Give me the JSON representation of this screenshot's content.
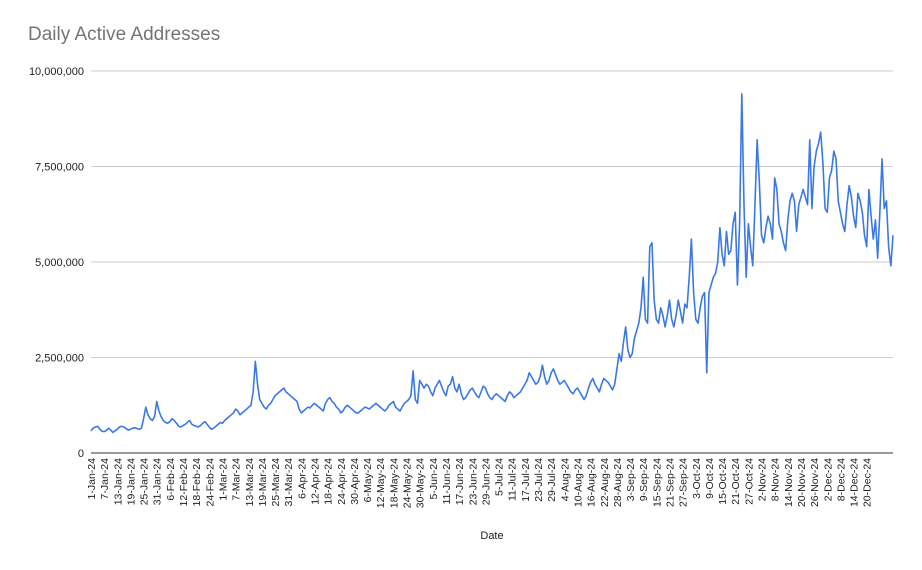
{
  "chart_data": {
    "type": "line",
    "title": "Daily Active Addresses",
    "xlabel": "Date",
    "ylabel": "",
    "ylim": [
      0,
      10000000
    ],
    "yticks": [
      0,
      2500000,
      5000000,
      7500000,
      10000000
    ],
    "ytick_labels": [
      "0",
      "2,500,000",
      "5,000,000",
      "7,500,000",
      "10,000,000"
    ],
    "x_start": "2024-01-01",
    "x_tick_labels": [
      "1-Jan-24",
      "7-Jan-24",
      "13-Jan-24",
      "19-Jan-24",
      "25-Jan-24",
      "31-Jan-24",
      "6-Feb-24",
      "12-Feb-24",
      "18-Feb-24",
      "24-Feb-24",
      "1-Mar-24",
      "7-Mar-24",
      "13-Mar-24",
      "19-Mar-24",
      "25-Mar-24",
      "31-Mar-24",
      "6-Apr-24",
      "12-Apr-24",
      "18-Apr-24",
      "24-Apr-24",
      "30-Apr-24",
      "6-May-24",
      "12-May-24",
      "18-May-24",
      "24-May-24",
      "30-May-24",
      "5-Jun-24",
      "11-Jun-24",
      "17-Jun-24",
      "23-Jun-24",
      "29-Jun-24",
      "5-Jul-24",
      "11-Jul-24",
      "17-Jul-24",
      "23-Jul-24",
      "29-Jul-24",
      "4-Aug-24",
      "10-Aug-24",
      "16-Aug-24",
      "22-Aug-24",
      "28-Aug-24",
      "3-Sep-24",
      "9-Sep-24",
      "15-Sep-24",
      "21-Sep-24",
      "27-Sep-24",
      "3-Oct-24",
      "9-Oct-24",
      "15-Oct-24",
      "21-Oct-24",
      "27-Oct-24",
      "2-Nov-24",
      "8-Nov-24",
      "14-Nov-24",
      "20-Nov-24",
      "26-Nov-24",
      "2-Dec-24",
      "8-Dec-24",
      "14-Dec-24",
      "20-Dec-24"
    ],
    "x_tick_step_days": 6,
    "color": "#3b78e7",
    "gridlines": true,
    "series": [
      {
        "values": [
          580000,
          650000,
          680000,
          700000,
          630000,
          570000,
          560000,
          590000,
          650000,
          600000,
          540000,
          580000,
          620000,
          680000,
          700000,
          680000,
          640000,
          600000,
          620000,
          650000,
          660000,
          640000,
          620000,
          650000,
          900000,
          1200000,
          1000000,
          900000,
          850000,
          950000,
          1350000,
          1100000,
          950000,
          850000,
          800000,
          780000,
          820000,
          900000,
          850000,
          780000,
          700000,
          680000,
          720000,
          750000,
          800000,
          850000,
          750000,
          720000,
          700000,
          680000,
          720000,
          780000,
          820000,
          750000,
          680000,
          620000,
          650000,
          700000,
          750000,
          800000,
          780000,
          850000,
          900000,
          950000,
          1000000,
          1050000,
          1150000,
          1100000,
          1000000,
          1050000,
          1100000,
          1150000,
          1200000,
          1250000,
          1600000,
          2400000,
          1800000,
          1400000,
          1300000,
          1200000,
          1150000,
          1250000,
          1300000,
          1400000,
          1500000,
          1550000,
          1600000,
          1650000,
          1700000,
          1600000,
          1550000,
          1500000,
          1450000,
          1400000,
          1350000,
          1150000,
          1050000,
          1100000,
          1150000,
          1200000,
          1180000,
          1250000,
          1300000,
          1250000,
          1200000,
          1150000,
          1100000,
          1300000,
          1400000,
          1450000,
          1350000,
          1300000,
          1200000,
          1150000,
          1050000,
          1100000,
          1200000,
          1250000,
          1200000,
          1150000,
          1100000,
          1050000,
          1050000,
          1100000,
          1150000,
          1200000,
          1180000,
          1150000,
          1200000,
          1250000,
          1300000,
          1250000,
          1200000,
          1150000,
          1100000,
          1150000,
          1250000,
          1300000,
          1350000,
          1200000,
          1150000,
          1100000,
          1200000,
          1300000,
          1350000,
          1400000,
          1500000,
          2150000,
          1400000,
          1300000,
          1900000,
          1800000,
          1700000,
          1800000,
          1750000,
          1600000,
          1500000,
          1700000,
          1800000,
          1900000,
          1750000,
          1600000,
          1500000,
          1750000,
          1800000,
          2000000,
          1700000,
          1600000,
          1800000,
          1550000,
          1400000,
          1450000,
          1550000,
          1650000,
          1700000,
          1600000,
          1500000,
          1450000,
          1600000,
          1750000,
          1700000,
          1550000,
          1450000,
          1400000,
          1500000,
          1550000,
          1500000,
          1450000,
          1400000,
          1350000,
          1500000,
          1600000,
          1550000,
          1450000,
          1500000,
          1550000,
          1600000,
          1700000,
          1800000,
          1900000,
          2100000,
          2000000,
          1900000,
          1800000,
          1850000,
          2000000,
          2300000,
          2000000,
          1800000,
          1900000,
          2100000,
          2200000,
          2050000,
          1900000,
          1800000,
          1850000,
          1900000,
          1800000,
          1700000,
          1600000,
          1550000,
          1650000,
          1700000,
          1600000,
          1500000,
          1400000,
          1500000,
          1700000,
          1850000,
          1950000,
          1800000,
          1700000,
          1600000,
          1800000,
          1950000,
          1900000,
          1850000,
          1750000,
          1650000,
          1800000,
          2200000,
          2600000,
          2400000,
          2900000,
          3300000,
          2700000,
          2500000,
          2600000,
          3000000,
          3200000,
          3400000,
          3800000,
          4600000,
          3500000,
          3400000,
          5400000,
          5500000,
          4000000,
          3500000,
          3400000,
          3800000,
          3600000,
          3300000,
          3600000,
          4000000,
          3500000,
          3300000,
          3600000,
          4000000,
          3700000,
          3400000,
          3900000,
          3800000,
          4600000,
          5600000,
          4200000,
          3500000,
          3400000,
          3800000,
          4100000,
          4200000,
          2100000,
          4200000,
          4400000,
          4600000,
          4700000,
          5000000,
          5900000,
          5200000,
          4900000,
          5800000,
          5200000,
          5300000,
          6000000,
          6300000,
          4400000,
          6000000,
          9400000,
          6500000,
          4600000,
          6000000,
          5400000,
          4900000,
          6500000,
          8200000,
          7100000,
          5700000,
          5500000,
          5900000,
          6200000,
          6000000,
          5600000,
          7200000,
          6900000,
          6000000,
          5800000,
          5500000,
          5300000,
          6100000,
          6600000,
          6800000,
          6600000,
          5800000,
          6500000,
          6700000,
          6900000,
          6700000,
          6500000,
          8200000,
          6400000,
          7500000,
          7900000,
          8100000,
          8400000,
          7600000,
          6400000,
          6300000,
          7200000,
          7400000,
          7900000,
          7700000,
          6600000,
          6300000,
          6000000,
          5800000,
          6500000,
          7000000,
          6700000,
          6200000,
          5900000,
          6800000,
          6600000,
          6300000,
          5700000,
          5400000,
          6900000,
          6200000,
          5600000,
          6100000,
          5100000,
          6300000,
          7700000,
          6400000,
          6600000,
          5400000,
          4900000,
          5700000
        ]
      }
    ]
  }
}
